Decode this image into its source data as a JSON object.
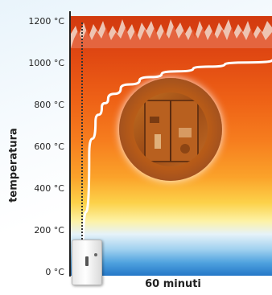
{
  "chart_data": {
    "type": "line",
    "title": "",
    "xlabel": "60 minuti",
    "ylabel": "temperatura",
    "yticks": [
      "1200 °C",
      "1000 °C",
      "800 °C",
      "600 °C",
      "400 °C",
      "200 °C",
      "0 °C"
    ],
    "ylim": [
      0,
      1200
    ],
    "xlim": [
      0,
      60
    ],
    "series": [
      {
        "x": [
          0,
          2,
          4,
          6,
          8,
          12,
          18,
          25,
          35,
          45,
          60
        ],
        "values": [
          20,
          560,
          720,
          790,
          830,
          880,
          920,
          950,
          975,
          995,
          1015
        ]
      }
    ]
  }
}
